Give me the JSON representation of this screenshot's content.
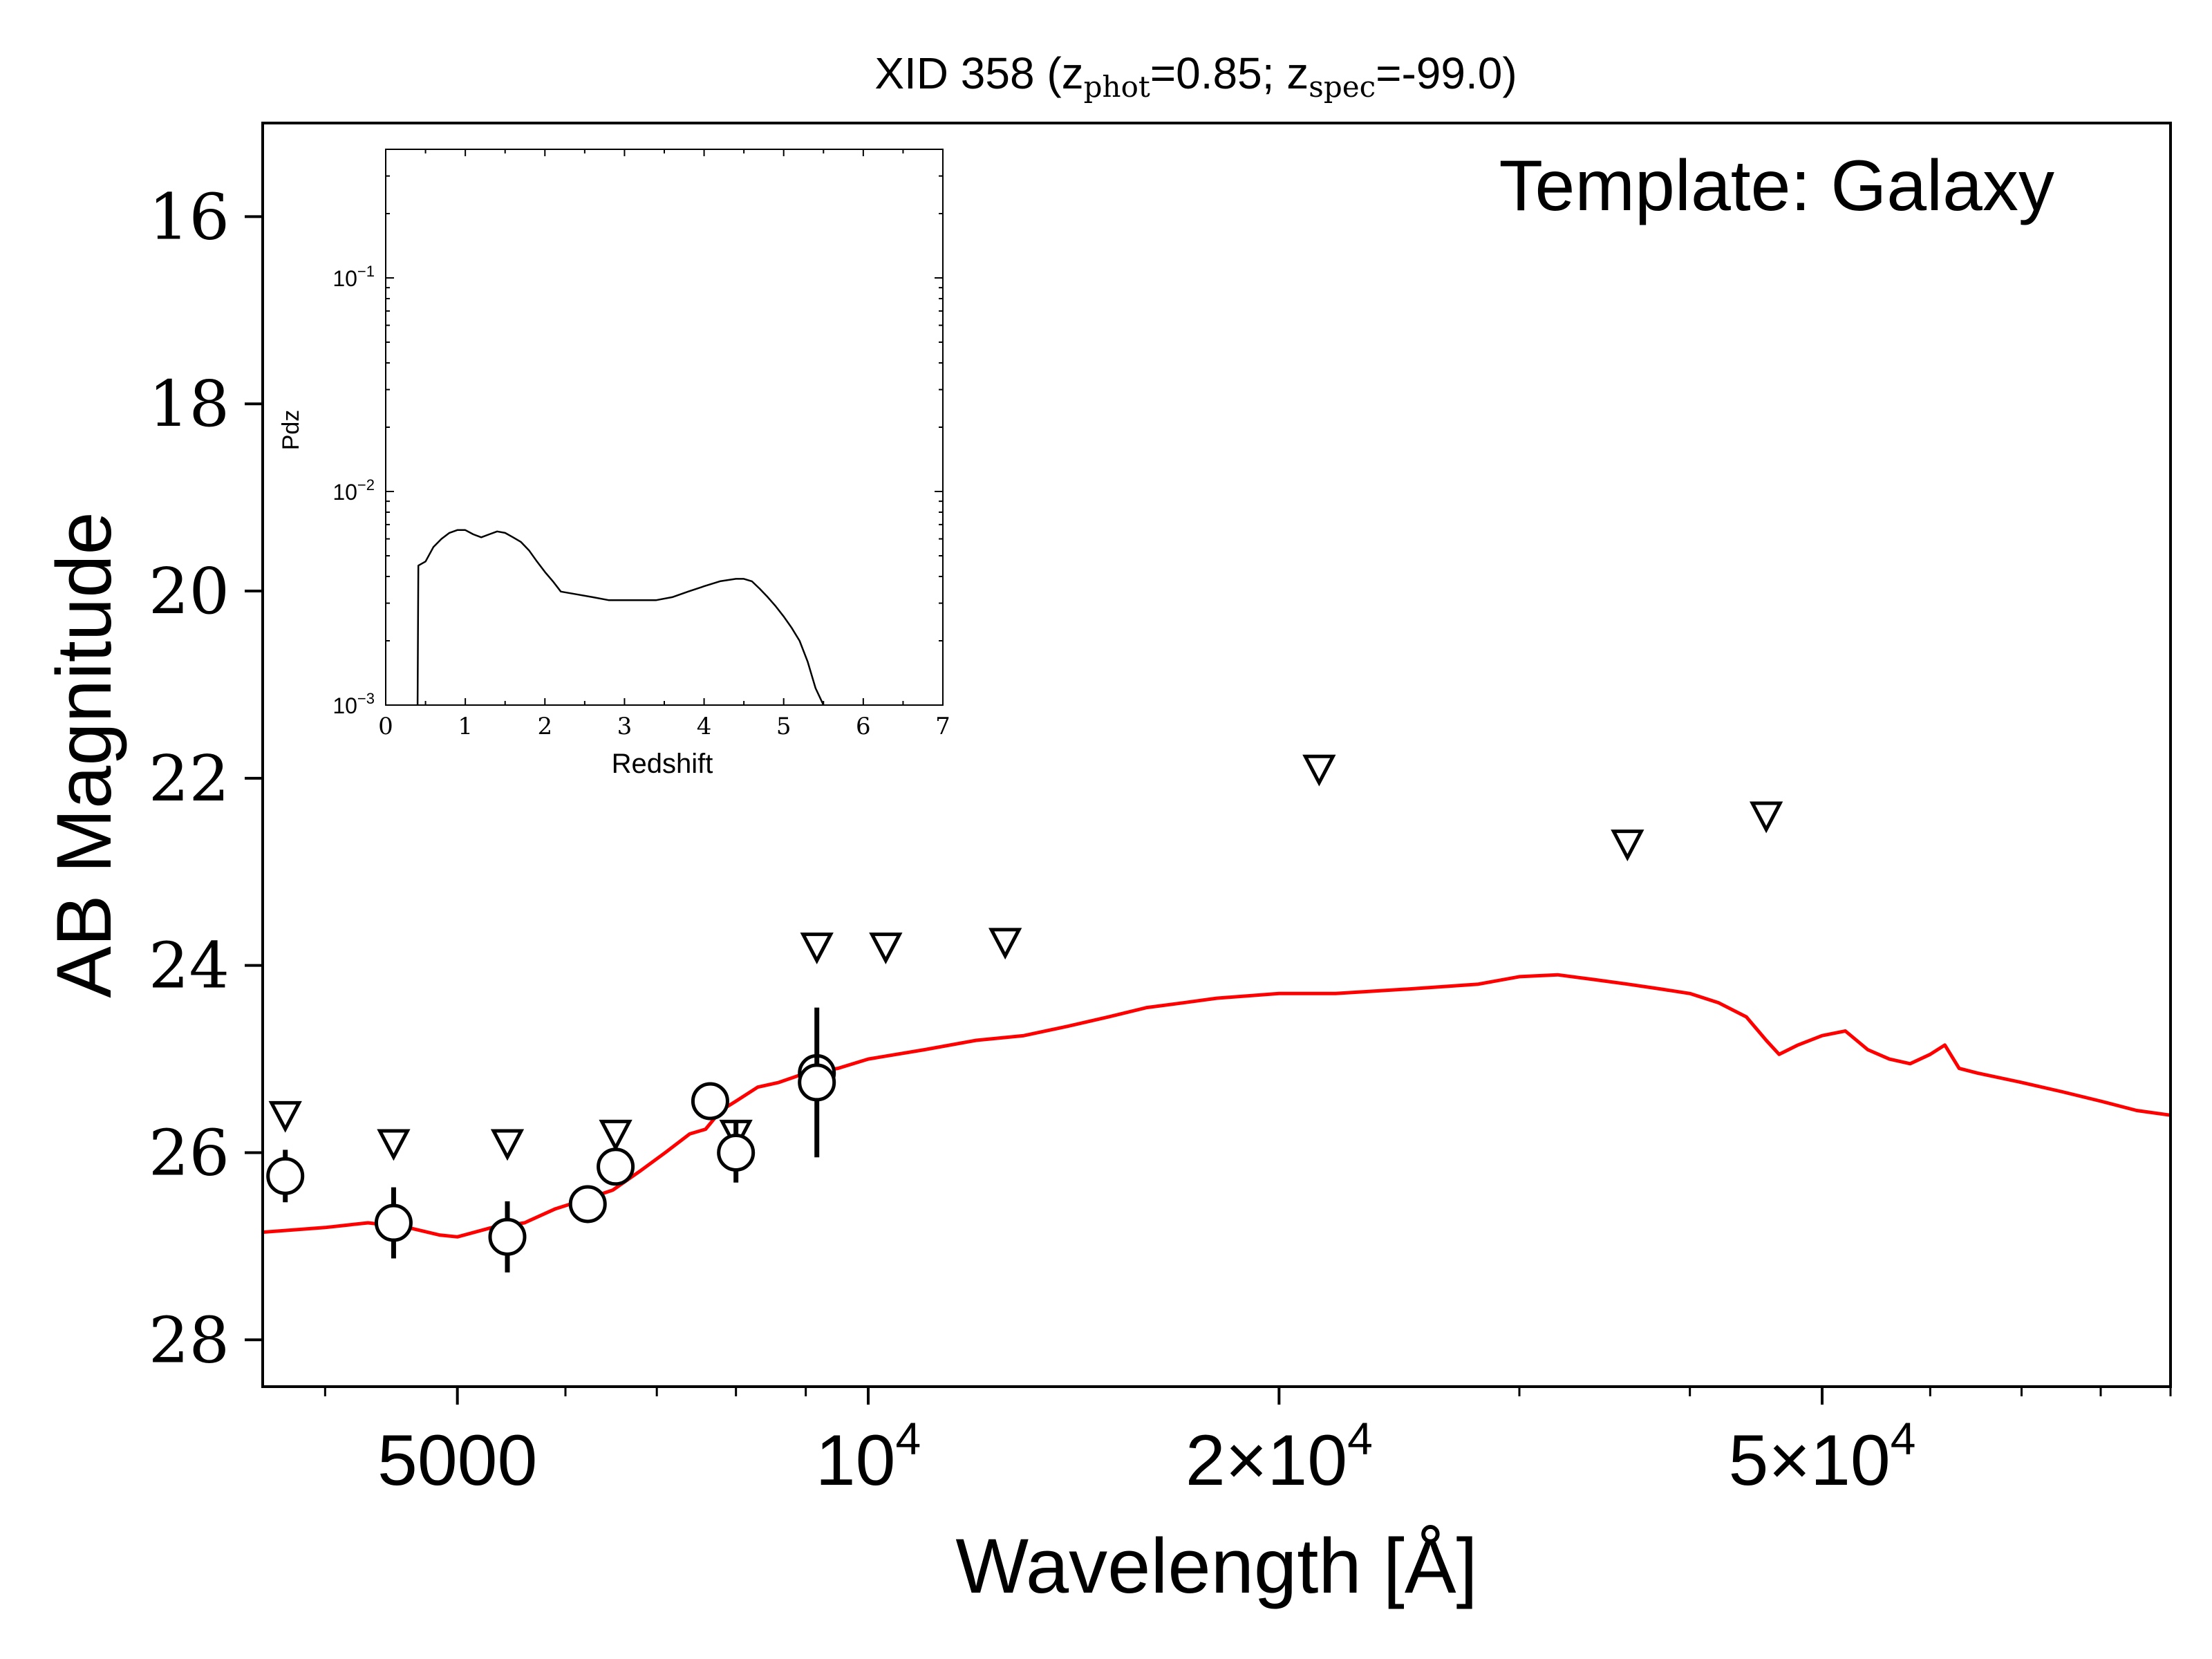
{
  "chart_data": [
    {
      "type": "scatter",
      "title": "XID 358 (z_phot=0.85; z_spec=-99.0)",
      "title_parts": {
        "prefix": "XID 358 (z",
        "sub1": "phot",
        "mid": "=0.85; z",
        "sub2": "spec",
        "suffix": "=-99.0)"
      },
      "annotation": "Template: Galaxy",
      "xlabel": "Wavelength [Å]",
      "ylabel": "AB Magnitude",
      "xscale": "log",
      "xlim": [
        3600,
        90000
      ],
      "ylim": [
        28.5,
        15.0
      ],
      "y_inverted": true,
      "x_ticks": [
        {
          "value": 5000,
          "label": "5000"
        },
        {
          "value": 10000,
          "label": "10",
          "sup": "4"
        },
        {
          "value": 20000,
          "label": "2×10",
          "sup": "4"
        },
        {
          "value": 50000,
          "label": "5×10",
          "sup": "4"
        }
      ],
      "x_minor_ticks": [
        4000,
        6000,
        7000,
        8000,
        9000,
        30000,
        40000,
        60000,
        70000,
        80000,
        90000
      ],
      "y_ticks": [
        16,
        18,
        20,
        22,
        24,
        26,
        28
      ],
      "detections": [
        {
          "x": 3740,
          "y": 26.25,
          "err": 0.28
        },
        {
          "x": 4490,
          "y": 26.75,
          "err": 0.38
        },
        {
          "x": 5440,
          "y": 26.9,
          "err": 0.38
        },
        {
          "x": 6230,
          "y": 26.55,
          "err": 0.0
        },
        {
          "x": 6530,
          "y": 26.15,
          "err": 0.0
        },
        {
          "x": 7660,
          "y": 25.45,
          "err": 0.0
        },
        {
          "x": 8000,
          "y": 26.0,
          "err": 0.32
        },
        {
          "x": 9170,
          "y": 25.15,
          "err": 0.0
        },
        {
          "x": 9170,
          "y": 25.25,
          "err": 0.8
        }
      ],
      "upper_limits": [
        {
          "x": 3740,
          "y": 25.6
        },
        {
          "x": 4490,
          "y": 25.9
        },
        {
          "x": 5440,
          "y": 25.9
        },
        {
          "x": 6530,
          "y": 25.8
        },
        {
          "x": 8000,
          "y": 25.8
        },
        {
          "x": 9170,
          "y": 23.8
        },
        {
          "x": 10300,
          "y": 23.8
        },
        {
          "x": 12600,
          "y": 23.75
        },
        {
          "x": 21400,
          "y": 21.9
        },
        {
          "x": 36000,
          "y": 22.7
        },
        {
          "x": 45500,
          "y": 22.4
        }
      ],
      "sed_model": {
        "color": "#ff0000",
        "x": [
          3600,
          4000,
          4300,
          4600,
          4850,
          5000,
          5300,
          5600,
          5900,
          6200,
          6500,
          6800,
          7100,
          7400,
          7600,
          7800,
          8000,
          8300,
          8600,
          9000,
          9500,
          10000,
          11000,
          12000,
          13000,
          14000,
          15000,
          16000,
          17000,
          18000,
          20000,
          22000,
          25000,
          28000,
          30000,
          32000,
          34000,
          36000,
          38000,
          40000,
          42000,
          44000,
          45500,
          46500,
          48000,
          50000,
          52000,
          54000,
          56000,
          58000,
          60000,
          61500,
          63000,
          65000,
          70000,
          75000,
          80000,
          85000,
          90000
        ],
        "y": [
          26.85,
          26.8,
          26.75,
          26.8,
          26.88,
          26.9,
          26.8,
          26.75,
          26.6,
          26.5,
          26.4,
          26.2,
          26.0,
          25.8,
          25.75,
          25.55,
          25.45,
          25.3,
          25.25,
          25.15,
          25.1,
          25.0,
          24.9,
          24.8,
          24.75,
          24.65,
          24.55,
          24.45,
          24.4,
          24.35,
          24.3,
          24.3,
          24.25,
          24.2,
          24.12,
          24.1,
          24.15,
          24.2,
          24.25,
          24.3,
          24.4,
          24.55,
          24.8,
          24.95,
          24.85,
          24.75,
          24.7,
          24.9,
          25.0,
          25.05,
          24.95,
          24.85,
          25.1,
          25.15,
          25.25,
          25.35,
          25.45,
          25.55,
          25.6
        ]
      }
    },
    {
      "type": "line",
      "xlabel": "Redshift",
      "ylabel": "Pdz",
      "yscale": "log",
      "xlim": [
        0,
        7
      ],
      "ylim": [
        0.001,
        0.4
      ],
      "x_ticks": [
        0,
        1,
        2,
        3,
        4,
        5,
        6,
        7
      ],
      "y_ticks": [
        {
          "value": 0.001,
          "base": "10",
          "exp": "−3"
        },
        {
          "value": 0.01,
          "base": "10",
          "exp": "−2"
        },
        {
          "value": 0.1,
          "base": "10",
          "exp": "−1"
        }
      ],
      "series": [
        {
          "x": [
            0.4,
            0.41,
            0.5,
            0.6,
            0.7,
            0.8,
            0.9,
            1.0,
            1.1,
            1.2,
            1.3,
            1.4,
            1.5,
            1.6,
            1.7,
            1.8,
            1.9,
            2.0,
            2.1,
            2.2,
            2.4,
            2.6,
            2.8,
            3.0,
            3.2,
            3.4,
            3.6,
            3.8,
            4.0,
            4.2,
            4.4,
            4.5,
            4.6,
            4.7,
            4.8,
            4.9,
            5.0,
            5.1,
            5.2,
            5.3,
            5.4,
            5.5
          ],
          "y": [
            0.001,
            0.0045,
            0.0047,
            0.0055,
            0.006,
            0.0064,
            0.0066,
            0.0066,
            0.0063,
            0.0061,
            0.0063,
            0.0065,
            0.0064,
            0.0061,
            0.0058,
            0.0053,
            0.0047,
            0.0042,
            0.0038,
            0.0034,
            0.0033,
            0.0032,
            0.0031,
            0.0031,
            0.0031,
            0.0031,
            0.0032,
            0.0034,
            0.0036,
            0.0038,
            0.0039,
            0.0039,
            0.0038,
            0.0035,
            0.0032,
            0.0029,
            0.0026,
            0.0023,
            0.002,
            0.0016,
            0.0012,
            0.0009
          ]
        }
      ]
    }
  ]
}
